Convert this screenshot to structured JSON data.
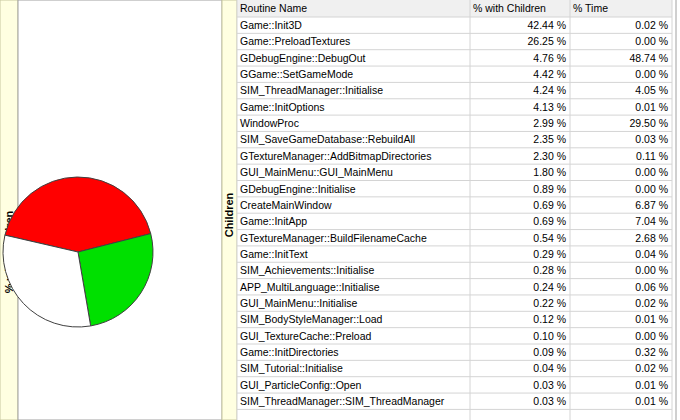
{
  "chart_data": {
    "type": "pie",
    "ylabel": "% with Children",
    "categories": [
      null,
      null,
      null
    ],
    "values": [
      42.44,
      26.25,
      31.31
    ],
    "colors": [
      "#ff0000",
      "#00e000",
      "#ffffff"
    ]
  },
  "table": {
    "label": "Children",
    "columns": [
      "Routine Name",
      "% with Children",
      "% Time"
    ],
    "rows": [
      [
        "Game::Init3D",
        "42.44 %",
        "0.02 %"
      ],
      [
        "Game::PreloadTextures",
        "26.25 %",
        "0.00 %"
      ],
      [
        "GDebugEngine::DebugOut",
        "4.76 %",
        "48.74 %"
      ],
      [
        "GGame::SetGameMode",
        "4.42 %",
        "0.00 %"
      ],
      [
        "SIM_ThreadManager::Initialise",
        "4.24 %",
        "4.05 %"
      ],
      [
        "Game::InitOptions",
        "4.13 %",
        "0.01 %"
      ],
      [
        "WindowProc",
        "2.99 %",
        "29.50 %"
      ],
      [
        "SIM_SaveGameDatabase::RebuildAll",
        "2.35 %",
        "0.03 %"
      ],
      [
        "GTextureManager::AddBitmapDirectories",
        "2.30 %",
        "0.11 %"
      ],
      [
        "GUI_MainMenu::GUI_MainMenu",
        "1.80 %",
        "0.00 %"
      ],
      [
        "GDebugEngine::Initialise",
        "0.89 %",
        "0.00 %"
      ],
      [
        "CreateMainWindow",
        "0.69 %",
        "6.87 %"
      ],
      [
        "Game::InitApp",
        "0.69 %",
        "7.04 %"
      ],
      [
        "GTextureManager::BuildFilenameCache",
        "0.54 %",
        "2.68 %"
      ],
      [
        "Game::InitText",
        "0.29 %",
        "0.04 %"
      ],
      [
        "SIM_Achievements::Initialise",
        "0.28 %",
        "0.00 %"
      ],
      [
        "APP_MultiLanguage::Initialise",
        "0.24 %",
        "0.06 %"
      ],
      [
        "GUI_MainMenu::Initialise",
        "0.22 %",
        "0.02 %"
      ],
      [
        "SIM_BodyStyleManager::Load",
        "0.12 %",
        "0.01 %"
      ],
      [
        "GUI_TextureCache::Preload",
        "0.10 %",
        "0.00 %"
      ],
      [
        "Game::InitDirectories",
        "0.09 %",
        "0.32 %"
      ],
      [
        "SIM_Tutorial::Initialise",
        "0.04 %",
        "0.02 %"
      ],
      [
        "GUI_ParticleConfig::Open",
        "0.03 %",
        "0.01 %"
      ],
      [
        "SIM_ThreadManager::SIM_ThreadManager",
        "0.03 %",
        "0.01 %"
      ]
    ]
  }
}
